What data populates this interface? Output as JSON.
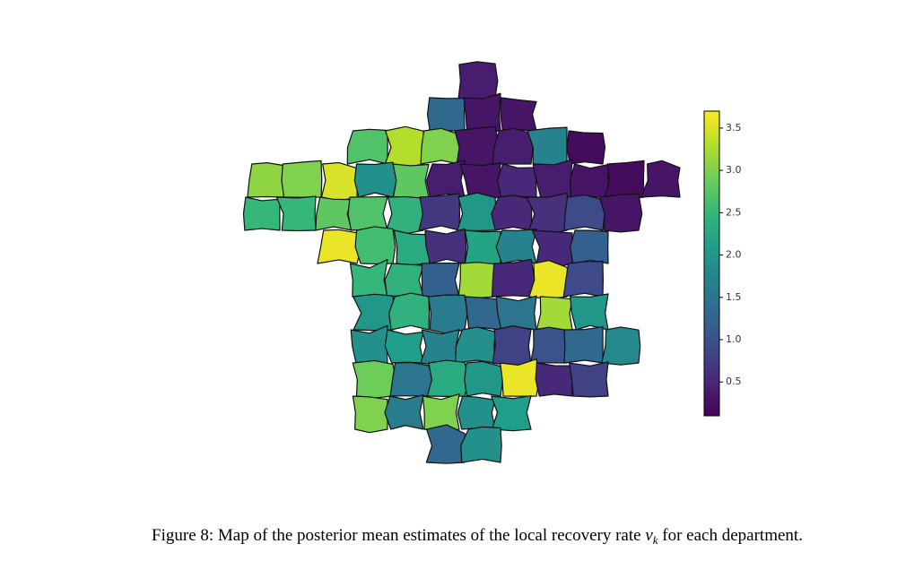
{
  "chart_data": {
    "type": "choropleth",
    "values": [
      0.4,
      1.3,
      0.3,
      0.3,
      2.7,
      3.3,
      3.0,
      0.3,
      0.4,
      1.7,
      0.2,
      3.1,
      3.0,
      3.5,
      1.9,
      2.8,
      0.4,
      0.3,
      0.5,
      0.4,
      0.3,
      0.2,
      0.3,
      2.5,
      2.5,
      2.8,
      2.7,
      2.4,
      0.7,
      2.0,
      0.5,
      0.6,
      0.9,
      0.3,
      3.6,
      2.6,
      2.3,
      0.6,
      2.2,
      1.7,
      0.5,
      1.2,
      2.5,
      2.4,
      1.2,
      3.2,
      0.5,
      3.6,
      0.9,
      2.0,
      2.4,
      1.6,
      1.3,
      1.5,
      3.2,
      2.0,
      1.9,
      2.1,
      1.7,
      1.9,
      0.8,
      1.0,
      1.3,
      1.8,
      2.9,
      1.5,
      2.3,
      2.0,
      3.6,
      0.5,
      0.8,
      3.0,
      1.6,
      3.0,
      1.9,
      2.1,
      1.3,
      1.9
    ],
    "colormap": "viridis",
    "clim": [
      0.1,
      3.7
    ],
    "cticks": [
      0.5,
      {
        "value": 1.0,
        "label": "1.0"
      },
      1.5,
      {
        "value": 2.0,
        "label": "2.0"
      },
      2.5,
      {
        "value": 3.0,
        "label": "3.0"
      },
      3.5
    ],
    "caption": {
      "before": "Figure 8: Map of the posterior mean estimates of the local recovery rate ",
      "symbol": "ν",
      "sub": "k",
      "after": " for each department."
    }
  }
}
